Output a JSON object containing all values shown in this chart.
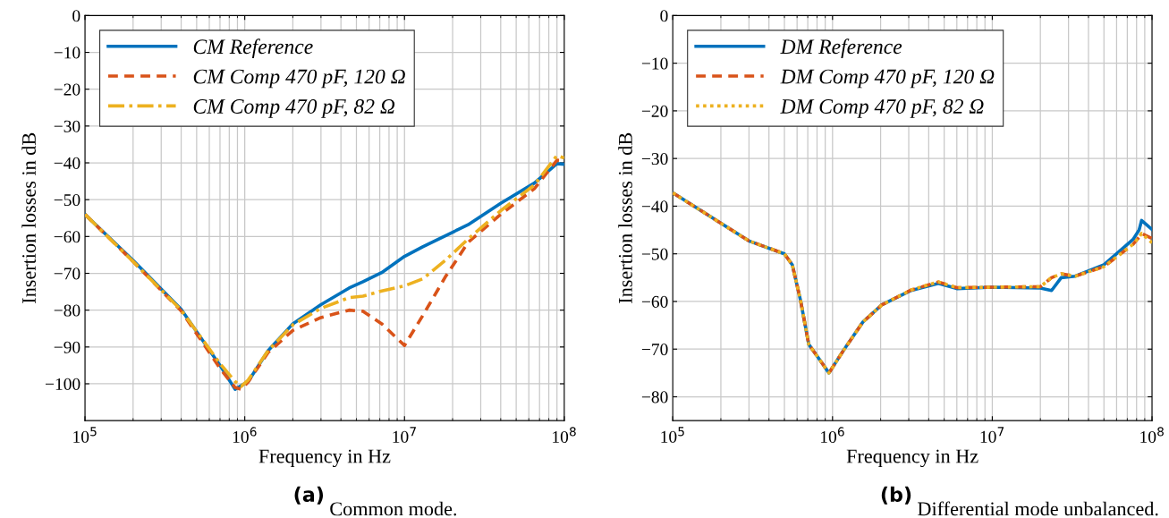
{
  "chart_data": [
    {
      "type": "line",
      "xlabel": "Frequency in Hz",
      "ylabel": "Insertion losses in dB",
      "annotations": [
        "(a)",
        "Common mode."
      ],
      "log": "x",
      "grid": true,
      "legend": "top left",
      "x": [
        100000,
        200000,
        400000,
        700000,
        870000,
        950000,
        1050000,
        1400000,
        2000000,
        3000000,
        4500000,
        5500000,
        7200000,
        10000000,
        13000000,
        18000000,
        25000000,
        40000000,
        65000000,
        90000000,
        100000000
      ],
      "xlim": [
        100000,
        100000000
      ],
      "xticks": [
        {
          "value": 100000,
          "label": "10$^{5}$"
        },
        {
          "value": 1000000,
          "label": "10$^{6}$"
        },
        {
          "value": 10000000,
          "label": "10$^{7}$"
        },
        {
          "value": 100000000,
          "label": "10$^{8}$"
        }
      ],
      "ylim": [
        -110,
        0
      ],
      "yticks": [
        {
          "value": 0,
          "label": "0"
        },
        {
          "value": -10,
          "label": "−10"
        },
        {
          "value": -20,
          "label": "−20"
        },
        {
          "value": -30,
          "label": "−30"
        },
        {
          "value": -40,
          "label": "−40"
        },
        {
          "value": -50,
          "label": "−50"
        },
        {
          "value": -60,
          "label": "−60"
        },
        {
          "value": -70,
          "label": "−70"
        },
        {
          "value": -80,
          "label": "−80"
        },
        {
          "value": -90,
          "label": "−90"
        },
        {
          "value": -100,
          "label": "−100"
        }
      ],
      "series": [
        {
          "name": "CM Reference",
          "color": "#0072bd",
          "line_style": "solid",
          "values": [
            -54,
            -66.5,
            -79.8,
            -95,
            -101.5,
            -100.5,
            -99.4,
            -91,
            -83.7,
            -78.5,
            -74,
            -72.3,
            -69.8,
            -65.4,
            -62.8,
            -59.8,
            -56.8,
            -51,
            -45.5,
            -40.2,
            -40.4
          ]
        },
        {
          "name": "CM Comp 470 pF, 120 Ω",
          "color": "#d95319",
          "line_style": "dashed",
          "values": [
            -54,
            -66.8,
            -80.2,
            -95.8,
            -101,
            -101.5,
            -99.5,
            -91.5,
            -85.5,
            -82,
            -80,
            -80.3,
            -83.7,
            -89.6,
            -81.5,
            -71,
            -61.6,
            -54,
            -47,
            -39.3,
            -39.5
          ]
        },
        {
          "name": "CM Comp 470 pF, 82 Ω",
          "color": "#edb120",
          "line_style": "dashdot",
          "values": [
            -54,
            -66.8,
            -80,
            -94.5,
            -99.4,
            -100.7,
            -99,
            -91,
            -84,
            -79.5,
            -76.6,
            -76.2,
            -74.8,
            -73.4,
            -71.5,
            -66.5,
            -60.7,
            -53,
            -46,
            -38,
            -38.7
          ]
        }
      ]
    },
    {
      "type": "line",
      "xlabel": "Frequency in Hz",
      "ylabel": "Insertion losses in dB",
      "annotations": [
        "(b)",
        "Differential mode unbalanced."
      ],
      "log": "x",
      "grid": true,
      "legend": "top left",
      "x": [
        100000,
        300000,
        500000,
        560000,
        630000,
        710000,
        810000,
        950000,
        1170000,
        1550000,
        2040000,
        3100000,
        4600000,
        6000000,
        10000000,
        20000000,
        23500000,
        27000000,
        33000000,
        50000000,
        76000000,
        83000000,
        86000000,
        100000000
      ],
      "xlim": [
        100000,
        100000000
      ],
      "xticks": [
        {
          "value": 100000,
          "label": "10$^{5}$"
        },
        {
          "value": 1000000,
          "label": "10$^{6}$"
        },
        {
          "value": 10000000,
          "label": "10$^{7}$"
        },
        {
          "value": 100000000,
          "label": "10$^{8}$"
        }
      ],
      "ylim": [
        -85,
        0
      ],
      "yticks": [
        {
          "value": 0,
          "label": "0"
        },
        {
          "value": -10,
          "label": "−10"
        },
        {
          "value": -20,
          "label": "−20"
        },
        {
          "value": -30,
          "label": "−30"
        },
        {
          "value": -40,
          "label": "−40"
        },
        {
          "value": -50,
          "label": "−50"
        },
        {
          "value": -60,
          "label": "−60"
        },
        {
          "value": -70,
          "label": "−70"
        },
        {
          "value": -80,
          "label": "−80"
        }
      ],
      "series": [
        {
          "name": "DM Reference",
          "color": "#0072bd",
          "line_style": "solid",
          "values": [
            -37.2,
            -47.3,
            -50,
            -52.3,
            -59.7,
            -69,
            -71.7,
            -75,
            -70.3,
            -64.3,
            -60.7,
            -57.7,
            -56.2,
            -57.3,
            -57,
            -57.2,
            -57.7,
            -55,
            -54.7,
            -52.3,
            -47,
            -45,
            -43,
            -44.9
          ]
        },
        {
          "name": "DM Comp 470 pF, 120 Ω",
          "color": "#d95319",
          "line_style": "dashed",
          "values": [
            -37.2,
            -47.3,
            -50,
            -52.3,
            -59.7,
            -69,
            -71.7,
            -75,
            -70.3,
            -64.3,
            -60.7,
            -57.6,
            -55.9,
            -57.1,
            -57,
            -56.9,
            -55,
            -54.2,
            -54.7,
            -52.7,
            -48,
            -46.5,
            -45.7,
            -46.8
          ]
        },
        {
          "name": "DM Comp 470 pF, 82 Ω",
          "color": "#edb120",
          "line_style": "dotted",
          "values": [
            -37.2,
            -47.3,
            -50,
            -52.3,
            -59.7,
            -69,
            -71.7,
            -75,
            -70.3,
            -64.3,
            -60.7,
            -57.6,
            -55.9,
            -57.1,
            -57,
            -56.9,
            -55,
            -54.2,
            -54.7,
            -52.7,
            -48,
            -46.5,
            -45.7,
            -47.7
          ]
        }
      ]
    }
  ]
}
